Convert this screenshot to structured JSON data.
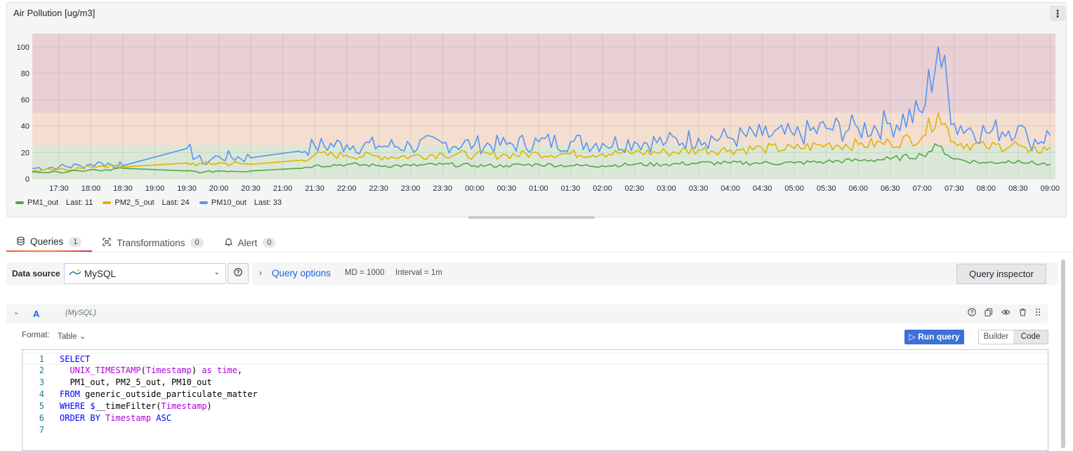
{
  "panel": {
    "title": "Air Pollution [ug/m3]",
    "menu_icon": "kebab-icon"
  },
  "chart_data": {
    "type": "line",
    "title": "Air Pollution [ug/m3]",
    "ylim": [
      0,
      110
    ],
    "yticks": [
      "0",
      "20",
      "40",
      "60",
      "80",
      "100"
    ],
    "xticks": [
      "17:30",
      "18:00",
      "18:30",
      "19:00",
      "19:30",
      "20:00",
      "20:30",
      "21:00",
      "21:30",
      "22:00",
      "22:30",
      "23:00",
      "23:30",
      "00:00",
      "00:30",
      "01:00",
      "01:30",
      "02:00",
      "02:30",
      "03:00",
      "03:30",
      "04:00",
      "04:30",
      "05:00",
      "05:30",
      "06:00",
      "06:30",
      "07:00",
      "07:30",
      "08:00",
      "08:30",
      "09:00"
    ],
    "thresholds": [
      {
        "from": 0,
        "to": 25,
        "color": "#dbe8d7"
      },
      {
        "from": 25,
        "to": 50,
        "color": "#f3ded0"
      },
      {
        "from": 50,
        "to": 110,
        "color": "#e9d0d4"
      }
    ],
    "x": [
      "17:05",
      "17:30",
      "17:50",
      "18:00",
      "18:10",
      "18:30",
      "19:30",
      "19:45",
      "20:00",
      "20:30",
      "21:15",
      "21:30",
      "22:00",
      "22:30",
      "23:00",
      "23:30",
      "00:00",
      "00:30",
      "01:00",
      "01:30",
      "02:00",
      "02:30",
      "03:00",
      "03:30",
      "04:00",
      "04:30",
      "05:00",
      "05:30",
      "06:00",
      "06:30",
      "07:00",
      "07:15",
      "07:30",
      "08:00",
      "08:30",
      "08:40",
      "09:00"
    ],
    "series": [
      {
        "name": "PM1_out",
        "color": "#56a64b",
        "last": "11",
        "values": [
          5,
          5,
          6,
          7,
          6,
          8,
          6,
          5,
          6,
          6,
          8,
          10,
          11,
          10,
          10,
          11,
          10,
          10,
          11,
          10,
          10,
          11,
          11,
          12,
          12,
          12,
          12,
          13,
          14,
          15,
          18,
          25,
          15,
          12,
          14,
          12,
          11
        ]
      },
      {
        "name": "PM2_5_out",
        "color": "#e0b400",
        "last": "24",
        "values": [
          6,
          7,
          8,
          9,
          10,
          9,
          12,
          11,
          12,
          11,
          14,
          18,
          18,
          17,
          17,
          19,
          18,
          18,
          19,
          19,
          19,
          20,
          20,
          22,
          22,
          23,
          23,
          26,
          26,
          27,
          32,
          50,
          28,
          24,
          26,
          20,
          24
        ]
      },
      {
        "name": "PM10_out",
        "color": "#5794f2",
        "last": "33",
        "values": [
          8,
          9,
          10,
          11,
          12,
          10,
          23,
          12,
          17,
          16,
          21,
          25,
          26,
          25,
          25,
          27,
          26,
          26,
          28,
          28,
          27,
          28,
          28,
          31,
          31,
          33,
          33,
          38,
          38,
          42,
          50,
          100,
          42,
          35,
          40,
          28,
          33
        ]
      }
    ]
  },
  "legend": {
    "items": [
      {
        "name": "PM1_out",
        "last_label": "Last: 11"
      },
      {
        "name": "PM2_5_out",
        "last_label": "Last: 24"
      },
      {
        "name": "PM10_out",
        "last_label": "Last: 33"
      }
    ]
  },
  "tabs": [
    {
      "label": "Queries",
      "count": "1",
      "icon": "database-icon"
    },
    {
      "label": "Transformations",
      "count": "0",
      "icon": "transform-icon"
    },
    {
      "label": "Alert",
      "count": "0",
      "icon": "bell-icon"
    }
  ],
  "datasource": {
    "label": "Data source",
    "selected": "MySQL",
    "logo_text": "MySQL",
    "query_options_label": "Query options",
    "md": "MD = 1000",
    "interval": "Interval = 1m",
    "inspector_label": "Query inspector"
  },
  "query": {
    "letter": "A",
    "datasource": "(MySQL)",
    "format_label": "Format:",
    "format_value": "Table",
    "run_label": "Run query",
    "mode_builder": "Builder",
    "mode_code": "Code",
    "lines": [
      "1",
      "2",
      "3",
      "4",
      "5",
      "6",
      "7"
    ]
  }
}
